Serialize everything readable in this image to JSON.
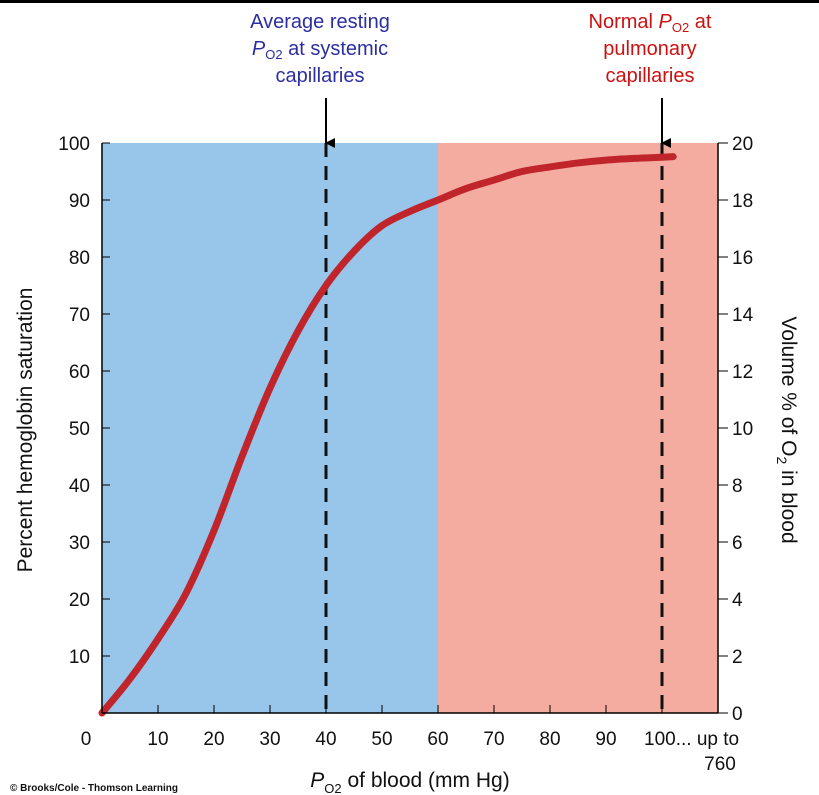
{
  "chart_data": {
    "type": "line",
    "title": "",
    "xlabel": {
      "italic": "P",
      "sub": "O2",
      "rest": " of blood (mm Hg)"
    },
    "ylabel": "Percent hemoglobin saturation",
    "y2label": {
      "pre": "Volume % of O",
      "sub": "2",
      "post": " in blood"
    },
    "xlim": [
      0,
      110
    ],
    "ylim": [
      0,
      100
    ],
    "y2lim": [
      0,
      20
    ],
    "x_ticks": [
      "0",
      "10",
      "20",
      "30",
      "40",
      "50",
      "60",
      "70",
      "80",
      "90",
      "100..."
    ],
    "x_tick_values": [
      0,
      10,
      20,
      30,
      40,
      50,
      60,
      70,
      80,
      90,
      100
    ],
    "x_extra_label": [
      "up to",
      "760"
    ],
    "y_ticks": [
      10,
      20,
      30,
      40,
      50,
      60,
      70,
      80,
      90,
      100
    ],
    "y2_ticks": [
      0,
      2,
      4,
      6,
      8,
      10,
      12,
      14,
      16,
      18,
      20
    ],
    "regions": [
      {
        "x0": 0,
        "x1": 60,
        "color": "#97c6ea"
      },
      {
        "x0": 60,
        "x1": 110,
        "color": "#f5aca0"
      }
    ],
    "reference_lines": [
      {
        "x": 40,
        "style": "dashed"
      },
      {
        "x": 100,
        "style": "dashed"
      }
    ],
    "series": [
      {
        "color": "#c0252c",
        "x": [
          0,
          5,
          10,
          15,
          20,
          25,
          30,
          35,
          40,
          45,
          50,
          55,
          60,
          65,
          70,
          75,
          80,
          85,
          90,
          95,
          100,
          102
        ],
        "y": [
          0,
          6,
          13,
          21,
          32,
          45,
          57,
          67,
          75,
          81,
          85.5,
          88,
          90,
          92,
          93.5,
          95,
          95.8,
          96.5,
          97,
          97.3,
          97.5,
          97.6
        ]
      }
    ]
  },
  "annotations": {
    "systemic": {
      "line1": "Average resting",
      "p": "P",
      "sub": "O2",
      "line2_rest": " at systemic",
      "line3": "capillaries"
    },
    "pulmonary": {
      "line1_pre": "Normal ",
      "p": "P",
      "sub": "O2",
      "line1_post": " at",
      "line2": "pulmonary",
      "line3": "capillaries"
    }
  },
  "copyright": "© Brooks/Cole - Thomson Learning"
}
